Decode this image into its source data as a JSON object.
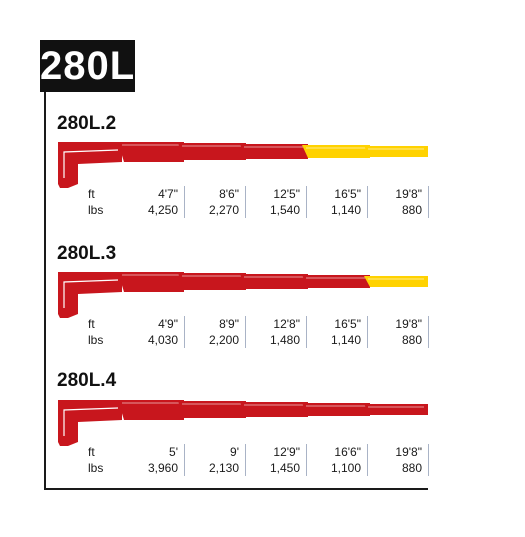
{
  "brand_title": "280L",
  "colors": {
    "red": "#c8161d",
    "yellow": "#ffd200",
    "divider": "#a9b3c6"
  },
  "units": {
    "ft": "ft",
    "lbs": "lbs"
  },
  "models": [
    {
      "name": "280L.2",
      "boom_colors": [
        "red",
        "red",
        "red",
        "yellow",
        "yellow"
      ],
      "reach_ft": [
        "4'7\"",
        "8'6\"",
        "12'5\"",
        "16'5\"",
        "19'8\""
      ],
      "capacity_lbs": [
        "4,250",
        "2,270",
        "1,540",
        "1,140",
        "880"
      ]
    },
    {
      "name": "280L.3",
      "boom_colors": [
        "red",
        "red",
        "red",
        "red",
        "yellow"
      ],
      "reach_ft": [
        "4'9\"",
        "8'9\"",
        "12'8\"",
        "16'5\"",
        "19'8\""
      ],
      "capacity_lbs": [
        "4,030",
        "2,200",
        "1,480",
        "1,140",
        "880"
      ]
    },
    {
      "name": "280L.4",
      "boom_colors": [
        "red",
        "red",
        "red",
        "red",
        "red"
      ],
      "reach_ft": [
        "5'",
        "9'",
        "12'9\"",
        "16'6\"",
        "19'8\""
      ],
      "capacity_lbs": [
        "3,960",
        "2,130",
        "1,450",
        "1,100",
        "880"
      ]
    }
  ]
}
